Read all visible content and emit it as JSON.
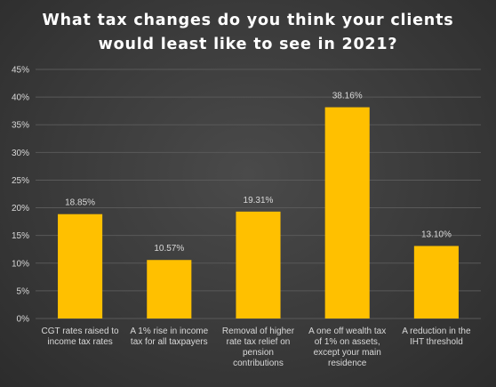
{
  "chart_data": {
    "type": "bar",
    "title": "What tax changes do you think your clients would least like to see in 2021?",
    "title_lines": [
      "What tax changes do you think your clients",
      "would least like to see in 2021?"
    ],
    "categories": [
      "CGT rates raised to income tax rates",
      "A 1% rise in income tax for all taxpayers",
      "Removal of higher rate tax relief on pension contributions",
      "A one off wealth tax of 1% on assets, except your main residence",
      "A reduction in the IHT threshold"
    ],
    "values": [
      18.85,
      10.57,
      19.31,
      38.16,
      13.1
    ],
    "data_labels": [
      "18.85%",
      "10.57%",
      "19.31%",
      "38.16%",
      "13.10%"
    ],
    "ylim": [
      0,
      45
    ],
    "yticks": [
      "0%",
      "5%",
      "10%",
      "15%",
      "20%",
      "25%",
      "30%",
      "35%",
      "40%",
      "45%"
    ],
    "xlabel": "",
    "ylabel": "",
    "grid": true,
    "legend": "none",
    "colors": {
      "bar": "#FFC000",
      "grid": "#595959",
      "text": "#D9D9D9",
      "title": "#FFFFFF"
    }
  }
}
